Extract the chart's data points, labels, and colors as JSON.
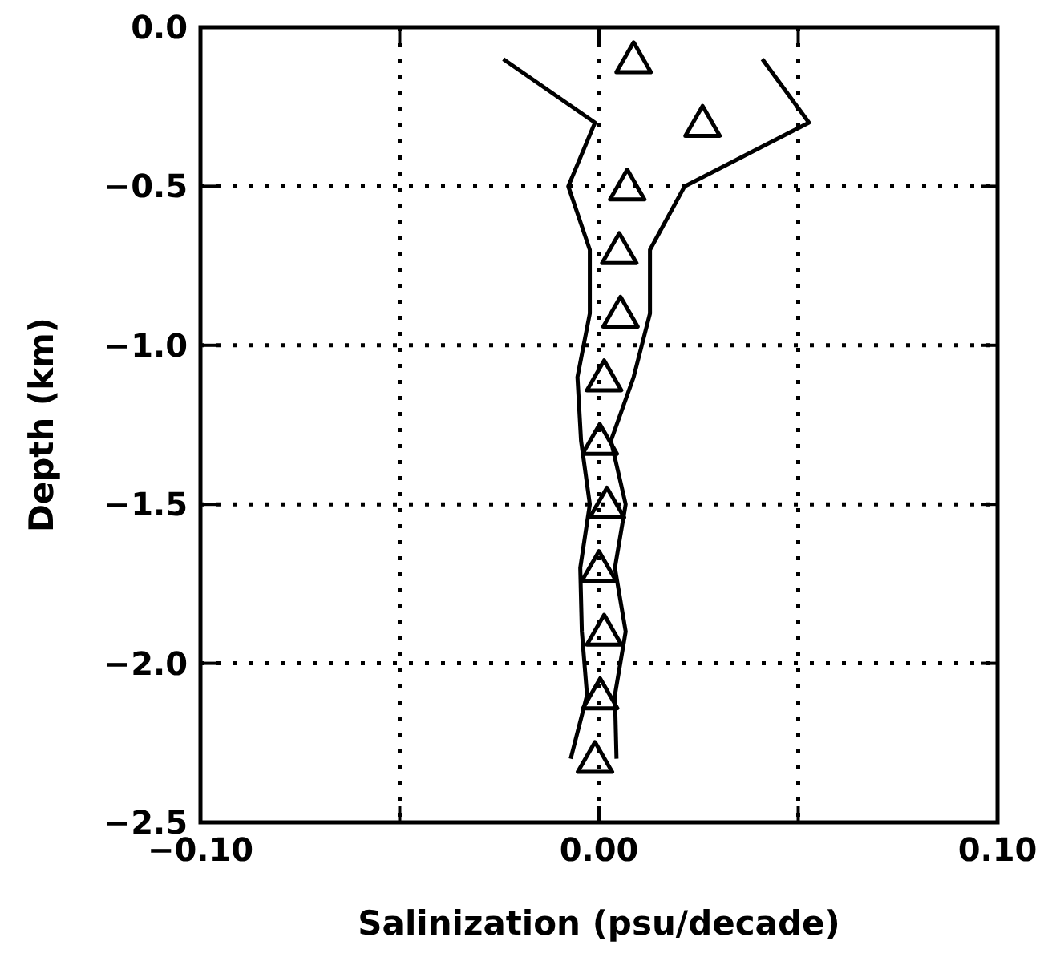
{
  "chart_data": {
    "type": "line",
    "xlabel": "Salinization (psu/decade)",
    "ylabel": "Depth (km)",
    "xlim": [
      -0.1,
      0.1
    ],
    "ylim": [
      -2.5,
      0
    ],
    "xticks": [
      {
        "value": -0.1,
        "label": "−0.10"
      },
      {
        "value": -0.05,
        "label": null
      },
      {
        "value": 0,
        "label": "0.00"
      },
      {
        "value": 0.05,
        "label": null
      },
      {
        "value": 0.1,
        "label": "0.10"
      }
    ],
    "yticks": [
      {
        "value": -2.5,
        "label": "−2.5"
      },
      {
        "value": -2,
        "label": "−2.0"
      },
      {
        "value": -1.5,
        "label": "−1.5"
      },
      {
        "value": -1,
        "label": "−1.0"
      },
      {
        "value": -0.5,
        "label": "−0.5"
      },
      {
        "value": 0,
        "label": "0.0"
      }
    ],
    "grid": true,
    "series": [
      {
        "color": "#000000",
        "marker": "none",
        "line_style": "solid",
        "x": [
          -0.024,
          -0.001,
          -0.0077,
          -0.0023,
          -0.0023,
          -0.0054,
          -0.0045,
          -0.0023,
          -0.0047,
          -0.0043,
          -0.003,
          -0.0071
        ],
        "values": [
          -0.1,
          -0.3,
          -0.5,
          -0.7,
          -0.9,
          -1.1,
          -1.3,
          -1.5,
          -1.7,
          -1.9,
          -2.1,
          -2.3
        ]
      },
      {
        "color": "#000000",
        "marker": "none",
        "line_style": "solid",
        "x": [
          0.041,
          0.0527,
          0.0215,
          0.0128,
          0.0128,
          0.0087,
          0.003,
          0.0067,
          0.004,
          0.0067,
          0.004,
          0.0044
        ],
        "values": [
          -0.1,
          -0.3,
          -0.5,
          -0.7,
          -0.9,
          -1.1,
          -1.3,
          -1.5,
          -1.7,
          -1.9,
          -2.1,
          -2.3
        ]
      },
      {
        "type": "scatter",
        "color": "#000000",
        "marker": "triangle",
        "x": [
          0.0087,
          0.026,
          0.0071,
          0.0051,
          0.0054,
          0.0013,
          0.0002,
          0.002,
          0.0,
          0.0013,
          0.0003,
          -0.001
        ],
        "values": [
          -0.1,
          -0.3,
          -0.5,
          -0.7,
          -0.9,
          -1.1,
          -1.3,
          -1.5,
          -1.7,
          -1.9,
          -2.1,
          -2.3
        ]
      }
    ]
  }
}
